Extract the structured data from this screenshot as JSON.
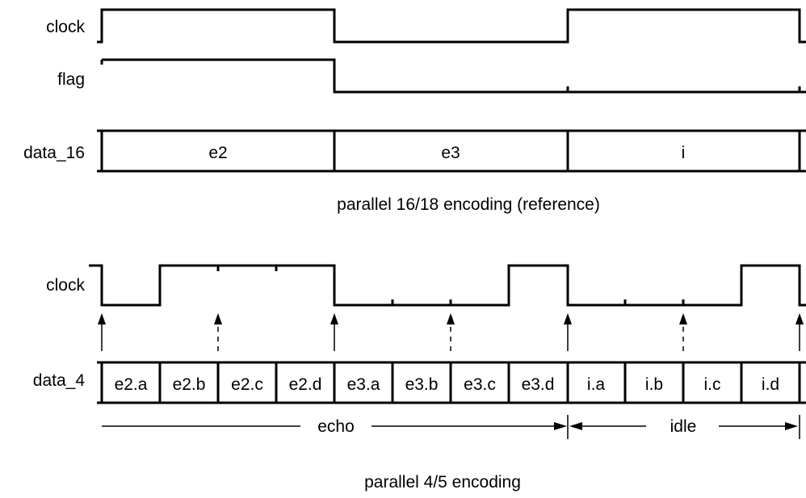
{
  "top": {
    "clock_label": "clock",
    "flag_label": "flag",
    "data_label": "data_16",
    "cells": [
      "e2",
      "e3",
      "i"
    ],
    "caption": "parallel 16/18 encoding (reference)"
  },
  "bottom": {
    "clock_label": "clock",
    "data_label": "data_4",
    "cells": [
      "e2.a",
      "e2.b",
      "e2.c",
      "e2.d",
      "e3.a",
      "e3.b",
      "e3.c",
      "e3.d",
      "i.a",
      "i.b",
      "i.c",
      "i.d"
    ],
    "span_echo": "echo",
    "span_idle": "idle",
    "caption": "parallel 4/5 encoding"
  }
}
